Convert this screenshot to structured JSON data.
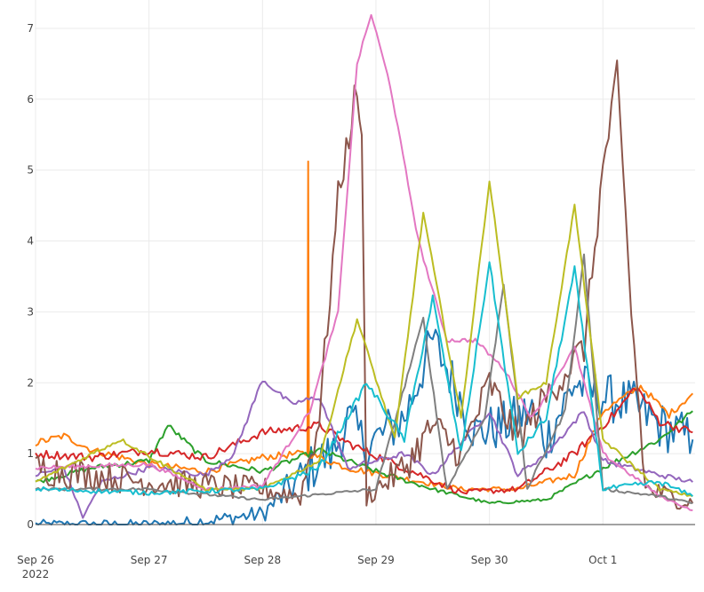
{
  "chart_data": {
    "type": "line",
    "title": "",
    "xlabel": "",
    "ylabel": "",
    "x_axis": {
      "type": "date",
      "range": [
        "2022-09-26",
        "2022-10-01T19:30"
      ],
      "ticks": [
        {
          "value": "2022-09-26",
          "label": "Sep 26",
          "sublabel": "2022"
        },
        {
          "value": "2022-09-27",
          "label": "Sep 27",
          "sublabel": ""
        },
        {
          "value": "2022-09-28",
          "label": "Sep 28",
          "sublabel": ""
        },
        {
          "value": "2022-09-29",
          "label": "Sep 29",
          "sublabel": ""
        },
        {
          "value": "2022-09-30",
          "label": "Sep 30",
          "sublabel": ""
        },
        {
          "value": "2022-10-01",
          "label": "Oct 1",
          "sublabel": ""
        }
      ]
    },
    "y_axis": {
      "range": [
        0,
        7.4
      ],
      "ticks": [
        {
          "value": 0,
          "label": "0"
        },
        {
          "value": 1,
          "label": "1"
        },
        {
          "value": 2,
          "label": "2"
        },
        {
          "value": 3,
          "label": "3"
        },
        {
          "value": 4,
          "label": "4"
        },
        {
          "value": 5,
          "label": "5"
        },
        {
          "value": 6,
          "label": "6"
        },
        {
          "value": 7,
          "label": "7"
        }
      ]
    },
    "grid": true,
    "legend": "none",
    "series": [
      {
        "color": "#1f77b4",
        "noise": 0.35,
        "points": [
          [
            "2022-09-26T00:00",
            0
          ],
          [
            "2022-09-27T00:00",
            0
          ],
          [
            "2022-09-27T12:00",
            0.05
          ],
          [
            "2022-09-28T00:00",
            0.15
          ],
          [
            "2022-09-28T12:00",
            0.9
          ],
          [
            "2022-09-28T15:00",
            1.0
          ],
          [
            "2022-09-28T18:00",
            1.5
          ],
          [
            "2022-09-28T22:00",
            1.1
          ],
          [
            "2022-09-29T06:00",
            1.5
          ],
          [
            "2022-09-29T12:00",
            2.6
          ],
          [
            "2022-09-29T15:00",
            2.2
          ],
          [
            "2022-09-29T21:00",
            1.3
          ],
          [
            "2022-09-30T03:00",
            1.4
          ],
          [
            "2022-09-30T09:00",
            1.6
          ],
          [
            "2022-09-30T12:00",
            1.2
          ],
          [
            "2022-09-30T18:00",
            2.0
          ],
          [
            "2022-10-01T00:00",
            1.8
          ],
          [
            "2022-10-01T06:00",
            1.7
          ],
          [
            "2022-10-01T12:00",
            1.4
          ],
          [
            "2022-10-01T19:00",
            1.2
          ]
        ]
      },
      {
        "color": "#ff7f0e",
        "noise": 0.05,
        "points": [
          [
            "2022-09-26T00:00",
            1.15
          ],
          [
            "2022-09-26T06:00",
            1.25
          ],
          [
            "2022-09-26T12:00",
            1.05
          ],
          [
            "2022-09-27T00:00",
            0.85
          ],
          [
            "2022-09-27T12:00",
            0.75
          ],
          [
            "2022-09-28T00:00",
            0.95
          ],
          [
            "2022-09-28T08:00",
            1.0
          ],
          [
            "2022-09-28T09:30",
            1.0
          ],
          [
            "2022-09-28T09:40",
            5.1
          ],
          [
            "2022-09-28T09:50",
            1.0
          ],
          [
            "2022-09-28T18:00",
            0.8
          ],
          [
            "2022-09-29T06:00",
            0.65
          ],
          [
            "2022-09-29T18:00",
            0.5
          ],
          [
            "2022-09-30T06:00",
            0.5
          ],
          [
            "2022-09-30T18:00",
            0.7
          ],
          [
            "2022-10-01T00:00",
            1.6
          ],
          [
            "2022-10-01T08:00",
            1.95
          ],
          [
            "2022-10-01T14:00",
            1.55
          ],
          [
            "2022-10-01T19:00",
            1.85
          ]
        ]
      },
      {
        "color": "#2ca02c",
        "noise": 0.04,
        "points": [
          [
            "2022-09-26T00:00",
            0.6
          ],
          [
            "2022-09-26T12:00",
            0.8
          ],
          [
            "2022-09-27T00:00",
            0.9
          ],
          [
            "2022-09-27T04:00",
            1.4
          ],
          [
            "2022-09-27T12:00",
            0.9
          ],
          [
            "2022-09-28T00:00",
            0.75
          ],
          [
            "2022-09-28T12:00",
            1.05
          ],
          [
            "2022-09-29T00:00",
            0.75
          ],
          [
            "2022-09-29T12:00",
            0.5
          ],
          [
            "2022-09-30T00:00",
            0.3
          ],
          [
            "2022-09-30T12:00",
            0.35
          ],
          [
            "2022-10-01T00:00",
            0.8
          ],
          [
            "2022-10-01T12:00",
            1.2
          ],
          [
            "2022-10-01T19:00",
            1.6
          ]
        ]
      },
      {
        "color": "#d62728",
        "noise": 0.06,
        "points": [
          [
            "2022-09-26T00:00",
            1.0
          ],
          [
            "2022-09-26T12:00",
            0.95
          ],
          [
            "2022-09-27T00:00",
            1.05
          ],
          [
            "2022-09-27T12:00",
            0.95
          ],
          [
            "2022-09-28T00:00",
            1.3
          ],
          [
            "2022-09-28T12:00",
            1.4
          ],
          [
            "2022-09-28T18:00",
            1.15
          ],
          [
            "2022-09-29T06:00",
            0.8
          ],
          [
            "2022-09-29T18:00",
            0.45
          ],
          [
            "2022-09-30T06:00",
            0.5
          ],
          [
            "2022-09-30T18:00",
            1.0
          ],
          [
            "2022-10-01T00:00",
            1.4
          ],
          [
            "2022-10-01T03:00",
            1.6
          ],
          [
            "2022-10-01T07:00",
            1.95
          ],
          [
            "2022-10-01T12:00",
            1.45
          ],
          [
            "2022-10-01T19:00",
            1.3
          ]
        ]
      },
      {
        "color": "#9467bd",
        "noise": 0.04,
        "points": [
          [
            "2022-09-26T00:00",
            0.7
          ],
          [
            "2022-09-26T06:00",
            0.8
          ],
          [
            "2022-09-26T10:00",
            0.1
          ],
          [
            "2022-09-26T14:00",
            0.6
          ],
          [
            "2022-09-27T00:00",
            0.8
          ],
          [
            "2022-09-27T12:00",
            0.7
          ],
          [
            "2022-09-27T18:00",
            1.0
          ],
          [
            "2022-09-28T00:00",
            2.05
          ],
          [
            "2022-09-28T06:00",
            1.7
          ],
          [
            "2022-09-28T12:00",
            1.8
          ],
          [
            "2022-09-28T18:00",
            0.8
          ],
          [
            "2022-09-29T06:00",
            1.0
          ],
          [
            "2022-09-29T12:00",
            0.7
          ],
          [
            "2022-09-30T00:00",
            1.6
          ],
          [
            "2022-09-30T06:00",
            0.7
          ],
          [
            "2022-09-30T12:00",
            1.0
          ],
          [
            "2022-09-30T20:00",
            1.6
          ],
          [
            "2022-10-01T00:00",
            0.9
          ],
          [
            "2022-10-01T12:00",
            0.7
          ],
          [
            "2022-10-01T19:00",
            0.6
          ]
        ]
      },
      {
        "color": "#8c564b",
        "noise": 0.25,
        "points": [
          [
            "2022-09-26T00:00",
            0.8
          ],
          [
            "2022-09-27T00:00",
            0.6
          ],
          [
            "2022-09-27T12:00",
            0.55
          ],
          [
            "2022-09-28T00:00",
            0.5
          ],
          [
            "2022-09-28T08:00",
            0.4
          ],
          [
            "2022-09-28T12:00",
            1.5
          ],
          [
            "2022-09-28T16:00",
            4.6
          ],
          [
            "2022-09-28T20:00",
            6.2
          ],
          [
            "2022-09-28T21:00",
            5.3
          ],
          [
            "2022-09-28T22:00",
            0.4
          ],
          [
            "2022-09-29T06:00",
            0.8
          ],
          [
            "2022-09-29T12:00",
            1.4
          ],
          [
            "2022-09-29T18:00",
            1.0
          ],
          [
            "2022-09-30T00:00",
            2.0
          ],
          [
            "2022-09-30T06:00",
            1.2
          ],
          [
            "2022-09-30T12:00",
            1.8
          ],
          [
            "2022-09-30T20:00",
            2.5
          ],
          [
            "2022-10-01T00:00",
            5.0
          ],
          [
            "2022-10-01T03:00",
            6.3
          ],
          [
            "2022-10-01T06:00",
            3.0
          ],
          [
            "2022-10-01T09:00",
            0.5
          ],
          [
            "2022-10-01T19:00",
            0.3
          ]
        ]
      },
      {
        "color": "#e377c2",
        "noise": 0.03,
        "points": [
          [
            "2022-09-26T00:00",
            0.8
          ],
          [
            "2022-09-27T00:00",
            0.85
          ],
          [
            "2022-09-27T12:00",
            0.5
          ],
          [
            "2022-09-28T00:00",
            0.55
          ],
          [
            "2022-09-28T10:00",
            1.6
          ],
          [
            "2022-09-28T16:00",
            3.0
          ],
          [
            "2022-09-28T20:00",
            6.5
          ],
          [
            "2022-09-28T23:00",
            7.2
          ],
          [
            "2022-09-29T03:00",
            6.2
          ],
          [
            "2022-09-29T09:00",
            4.0
          ],
          [
            "2022-09-29T15:00",
            2.6
          ],
          [
            "2022-09-29T21:00",
            2.6
          ],
          [
            "2022-09-30T03:00",
            2.2
          ],
          [
            "2022-09-30T09:00",
            1.5
          ],
          [
            "2022-09-30T18:00",
            2.5
          ],
          [
            "2022-10-01T00:00",
            1.0
          ],
          [
            "2022-10-01T12:00",
            0.4
          ],
          [
            "2022-10-01T19:00",
            0.2
          ]
        ]
      },
      {
        "color": "#7f7f7f",
        "noise": 0.03,
        "points": [
          [
            "2022-09-26T00:00",
            0.5
          ],
          [
            "2022-09-27T00:00",
            0.5
          ],
          [
            "2022-09-28T00:00",
            0.35
          ],
          [
            "2022-09-29T00:00",
            0.5
          ],
          [
            "2022-09-29T10:00",
            2.9
          ],
          [
            "2022-09-29T15:00",
            0.5
          ],
          [
            "2022-09-29T23:00",
            1.5
          ],
          [
            "2022-09-30T03:00",
            3.4
          ],
          [
            "2022-09-30T08:00",
            0.5
          ],
          [
            "2022-09-30T16:00",
            1.6
          ],
          [
            "2022-09-30T20:00",
            3.8
          ],
          [
            "2022-10-01T00:00",
            0.5
          ],
          [
            "2022-10-01T12:00",
            0.4
          ],
          [
            "2022-10-01T19:00",
            0.3
          ]
        ]
      },
      {
        "color": "#bcbd22",
        "noise": 0.03,
        "points": [
          [
            "2022-09-26T00:00",
            0.6
          ],
          [
            "2022-09-26T18:00",
            1.2
          ],
          [
            "2022-09-27T12:00",
            0.5
          ],
          [
            "2022-09-28T00:00",
            0.5
          ],
          [
            "2022-09-28T12:00",
            0.9
          ],
          [
            "2022-09-28T20:00",
            2.9
          ],
          [
            "2022-09-29T04:00",
            1.2
          ],
          [
            "2022-09-29T10:00",
            4.4
          ],
          [
            "2022-09-29T18:00",
            1.5
          ],
          [
            "2022-09-30T00:00",
            4.85
          ],
          [
            "2022-09-30T06:00",
            1.8
          ],
          [
            "2022-09-30T12:00",
            2.0
          ],
          [
            "2022-09-30T18:00",
            4.5
          ],
          [
            "2022-10-01T00:00",
            1.2
          ],
          [
            "2022-10-01T12:00",
            0.5
          ],
          [
            "2022-10-01T19:00",
            0.4
          ]
        ]
      },
      {
        "color": "#17becf",
        "noise": 0.05,
        "points": [
          [
            "2022-09-26T00:00",
            0.5
          ],
          [
            "2022-09-27T00:00",
            0.45
          ],
          [
            "2022-09-28T00:00",
            0.5
          ],
          [
            "2022-09-28T12:00",
            0.8
          ],
          [
            "2022-09-28T22:00",
            2.0
          ],
          [
            "2022-09-29T06:00",
            1.2
          ],
          [
            "2022-09-29T12:00",
            3.2
          ],
          [
            "2022-09-29T18:00",
            1.0
          ],
          [
            "2022-09-30T00:00",
            3.7
          ],
          [
            "2022-09-30T06:00",
            1.0
          ],
          [
            "2022-09-30T12:00",
            1.5
          ],
          [
            "2022-09-30T18:00",
            3.6
          ],
          [
            "2022-10-01T00:00",
            0.5
          ],
          [
            "2022-10-01T12:00",
            0.6
          ],
          [
            "2022-10-01T19:00",
            0.4
          ]
        ]
      }
    ]
  }
}
